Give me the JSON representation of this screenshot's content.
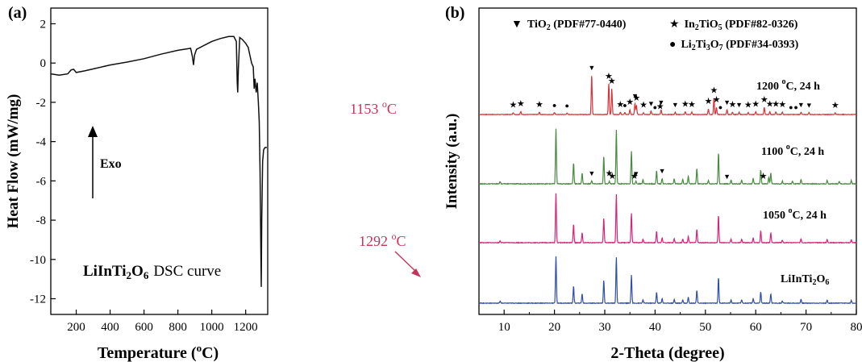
{
  "panels": {
    "a": {
      "label": "(a)",
      "ylabel": "Heat Flow (mW/mg)",
      "xlabel_main": "Temperature (",
      "xlabel_sup": "o",
      "xlabel_end": "C)",
      "arrow_label": "Exo",
      "title_bold_1": "LiInTi",
      "title_sub_1": "2",
      "title_bold_2": "O",
      "title_sub_2": "6",
      "title_plain": "DSC curve",
      "ann1_num": "1153 ",
      "ann1_sup": "o",
      "ann1_end": "C",
      "ann2_num": "1292 ",
      "ann2_sup": "o",
      "ann2_end": "C",
      "accent_color": "#c8325a"
    },
    "b": {
      "label": "(b)",
      "ylabel": "Intensity (a.u.)",
      "xlabel": "2-Theta (degree)",
      "legend": [
        {
          "marker": "▼",
          "formula": "TiO",
          "sub": "2",
          "rest": "",
          "sub2": "",
          "ref": " (PDF#77-0440)"
        },
        {
          "marker": "★",
          "formula": "In",
          "sub": "2",
          "rest": "TiO",
          "sub2": "5",
          "ref": " (PDF#82-0326)"
        },
        {
          "marker": "●",
          "formula": "Li",
          "sub": "2",
          "rest": "Ti",
          "sub2": "3",
          "rest2": "O",
          "sub3": "7",
          "ref": " (PDF#34-0393)"
        }
      ],
      "trace_labels": [
        {
          "pre": "1200 ",
          "sup": "o",
          "post": "C, 24 h"
        },
        {
          "pre": "1100 ",
          "sup": "o",
          "post": "C, 24 h"
        },
        {
          "pre": "1050 ",
          "sup": "o",
          "post": "C, 24 h"
        },
        {
          "pre": "LiInTi",
          "sub": "2",
          "post": "O",
          "sub2": "6"
        }
      ]
    }
  },
  "chart_data": [
    {
      "type": "line",
      "title": "",
      "xlabel": "Temperature (oC)",
      "ylabel": "Heat Flow (mW/mg)",
      "xlim": [
        50,
        1330
      ],
      "ylim": [
        -12.8,
        2.8
      ],
      "xticks": [
        200,
        400,
        600,
        800,
        1000,
        1200
      ],
      "yticks": [
        2,
        0,
        -2,
        -4,
        -6,
        -8,
        -10,
        -12
      ],
      "grid": false,
      "series": [
        {
          "name": "",
          "color": "#111111",
          "points": [
            [
              50,
              -0.55
            ],
            [
              100,
              -0.62
            ],
            [
              150,
              -0.55
            ],
            [
              170,
              -0.35
            ],
            [
              185,
              -0.32
            ],
            [
              200,
              -0.48
            ],
            [
              250,
              -0.4
            ],
            [
              300,
              -0.3
            ],
            [
              400,
              -0.1
            ],
            [
              500,
              0.05
            ],
            [
              600,
              0.22
            ],
            [
              700,
              0.45
            ],
            [
              800,
              0.65
            ],
            [
              850,
              0.72
            ],
            [
              875,
              0.75
            ],
            [
              885,
              0.35
            ],
            [
              892,
              -0.1
            ],
            [
              898,
              0.4
            ],
            [
              910,
              0.7
            ],
            [
              1000,
              1.1
            ],
            [
              1050,
              1.25
            ],
            [
              1100,
              1.35
            ],
            [
              1130,
              1.35
            ],
            [
              1145,
              1.1
            ],
            [
              1150,
              -1.0
            ],
            [
              1153,
              -1.5
            ],
            [
              1157,
              -0.3
            ],
            [
              1165,
              1.3
            ],
            [
              1180,
              1.2
            ],
            [
              1200,
              1.0
            ],
            [
              1215,
              0.8
            ],
            [
              1225,
              0.4
            ],
            [
              1235,
              0.0
            ],
            [
              1245,
              -0.2
            ],
            [
              1250,
              -1.3
            ],
            [
              1255,
              -0.8
            ],
            [
              1262,
              -1.5
            ],
            [
              1268,
              -1.0
            ],
            [
              1275,
              -2.0
            ],
            [
              1280,
              -3.0
            ],
            [
              1285,
              -5.5
            ],
            [
              1290,
              -10.0
            ],
            [
              1292,
              -11.4
            ],
            [
              1295,
              -8.0
            ],
            [
              1300,
              -5.0
            ],
            [
              1306,
              -4.4
            ],
            [
              1315,
              -4.3
            ],
            [
              1325,
              -4.3
            ]
          ]
        }
      ],
      "annotations": [
        "1153 oC",
        "1292 oC",
        "Exo",
        "LiInTi2O6 DSC curve"
      ]
    },
    {
      "type": "line",
      "title": "",
      "xlabel": "2-Theta (degree)",
      "ylabel": "Intensity (a.u.)",
      "xlim": [
        5,
        80
      ],
      "xticks": [
        10,
        20,
        30,
        40,
        50,
        60,
        70,
        80
      ],
      "grid": false,
      "legend_position": "top",
      "series": [
        {
          "name": "1200 oC, 24 h",
          "color": "#d9333a",
          "peaks": [
            [
              11.8,
              0.05
            ],
            [
              13.3,
              0.08
            ],
            [
              17.0,
              0.06
            ],
            [
              20.0,
              0.05
            ],
            [
              22.5,
              0.04
            ],
            [
              27.4,
              1.0
            ],
            [
              30.8,
              0.78
            ],
            [
              31.4,
              0.65
            ],
            [
              33.1,
              0.06
            ],
            [
              34.0,
              0.05
            ],
            [
              35.0,
              0.12
            ],
            [
              36.0,
              0.28
            ],
            [
              36.3,
              0.22
            ],
            [
              37.7,
              0.05
            ],
            [
              39.2,
              0.09
            ],
            [
              41.2,
              0.12
            ],
            [
              44.0,
              0.06
            ],
            [
              46.0,
              0.07
            ],
            [
              47.3,
              0.06
            ],
            [
              50.6,
              0.14
            ],
            [
              51.7,
              0.42
            ],
            [
              52.2,
              0.18
            ],
            [
              54.3,
              0.12
            ],
            [
              55.4,
              0.06
            ],
            [
              56.7,
              0.06
            ],
            [
              58.5,
              0.05
            ],
            [
              60.0,
              0.07
            ],
            [
              61.7,
              0.18
            ],
            [
              62.8,
              0.07
            ],
            [
              64.0,
              0.07
            ],
            [
              65.3,
              0.06
            ],
            [
              69.0,
              0.06
            ],
            [
              70.6,
              0.05
            ],
            [
              75.8,
              0.04
            ]
          ]
        },
        {
          "name": "1100 oC, 24 h",
          "color": "#4a8a42",
          "peaks": [
            [
              9.2,
              0.04
            ],
            [
              20.3,
              1.0
            ],
            [
              23.8,
              0.38
            ],
            [
              25.5,
              0.2
            ],
            [
              27.4,
              0.06
            ],
            [
              29.8,
              0.5
            ],
            [
              30.9,
              0.05
            ],
            [
              32.3,
              0.98
            ],
            [
              35.3,
              0.6
            ],
            [
              36.2,
              0.05
            ],
            [
              37.6,
              0.08
            ],
            [
              40.3,
              0.24
            ],
            [
              41.4,
              0.1
            ],
            [
              43.8,
              0.09
            ],
            [
              45.5,
              0.08
            ],
            [
              46.6,
              0.14
            ],
            [
              48.3,
              0.28
            ],
            [
              50.6,
              0.06
            ],
            [
              52.6,
              0.56
            ],
            [
              55.1,
              0.07
            ],
            [
              57.2,
              0.07
            ],
            [
              59.5,
              0.1
            ],
            [
              61.0,
              0.25
            ],
            [
              62.6,
              0.12
            ],
            [
              63.0,
              0.2
            ],
            [
              65.3,
              0.05
            ],
            [
              67.3,
              0.05
            ],
            [
              69.0,
              0.08
            ],
            [
              74.2,
              0.06
            ],
            [
              76.6,
              0.05
            ],
            [
              79.0,
              0.06
            ]
          ]
        },
        {
          "name": "1050 oC, 24 h",
          "color": "#d4257a",
          "peaks": [
            [
              9.2,
              0.04
            ],
            [
              20.3,
              1.0
            ],
            [
              23.8,
              0.37
            ],
            [
              25.5,
              0.2
            ],
            [
              29.8,
              0.5
            ],
            [
              32.3,
              0.98
            ],
            [
              35.3,
              0.6
            ],
            [
              37.6,
              0.07
            ],
            [
              40.3,
              0.23
            ],
            [
              41.4,
              0.1
            ],
            [
              43.8,
              0.08
            ],
            [
              45.5,
              0.07
            ],
            [
              46.6,
              0.13
            ],
            [
              48.3,
              0.27
            ],
            [
              52.6,
              0.55
            ],
            [
              55.1,
              0.07
            ],
            [
              57.2,
              0.07
            ],
            [
              59.5,
              0.1
            ],
            [
              61.0,
              0.24
            ],
            [
              63.0,
              0.2
            ],
            [
              65.3,
              0.05
            ],
            [
              69.0,
              0.08
            ],
            [
              74.2,
              0.06
            ],
            [
              79.0,
              0.06
            ]
          ]
        },
        {
          "name": "LiInTi2O6",
          "color": "#2f4fa8",
          "peaks": [
            [
              9.2,
              0.04
            ],
            [
              20.3,
              1.0
            ],
            [
              23.8,
              0.36
            ],
            [
              25.5,
              0.2
            ],
            [
              29.8,
              0.49
            ],
            [
              32.3,
              0.98
            ],
            [
              35.3,
              0.6
            ],
            [
              37.6,
              0.07
            ],
            [
              40.3,
              0.23
            ],
            [
              41.4,
              0.1
            ],
            [
              43.8,
              0.08
            ],
            [
              45.5,
              0.07
            ],
            [
              46.6,
              0.13
            ],
            [
              48.3,
              0.27
            ],
            [
              52.6,
              0.55
            ],
            [
              55.1,
              0.07
            ],
            [
              57.2,
              0.07
            ],
            [
              59.5,
              0.1
            ],
            [
              61.0,
              0.24
            ],
            [
              63.0,
              0.2
            ],
            [
              65.3,
              0.05
            ],
            [
              69.0,
              0.08
            ],
            [
              74.2,
              0.06
            ],
            [
              79.0,
              0.06
            ]
          ]
        }
      ],
      "phase_markers": {
        "1200 oC, 24 h": {
          "TiO2": [
            27.4,
            36.0,
            39.2,
            41.2,
            44.0,
            54.3,
            56.7,
            69.0,
            70.6
          ],
          "In2TiO5": [
            11.8,
            13.3,
            17.0,
            30.8,
            31.4,
            33.1,
            35.0,
            36.3,
            37.7,
            41.0,
            46.0,
            47.3,
            50.6,
            51.7,
            52.2,
            55.4,
            58.5,
            60.0,
            61.7,
            62.8,
            64.0,
            65.3,
            75.8
          ],
          "Li2Ti3O7": [
            20.0,
            22.5,
            34.0,
            40.0,
            53.0,
            67.0,
            68.0
          ]
        },
        "1100 oC, 24 h": {
          "TiO2": [
            27.4,
            36.2,
            41.4,
            54.3
          ],
          "In2TiO5": [
            30.9,
            31.5,
            35.9,
            61.5
          ]
        }
      }
    }
  ]
}
